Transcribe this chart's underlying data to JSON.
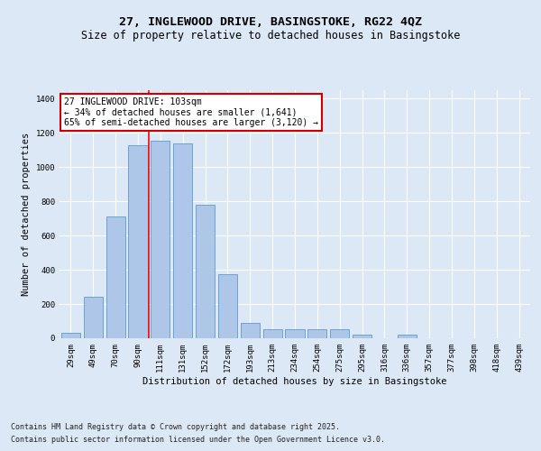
{
  "title_line1": "27, INGLEWOOD DRIVE, BASINGSTOKE, RG22 4QZ",
  "title_line2": "Size of property relative to detached houses in Basingstoke",
  "xlabel": "Distribution of detached houses by size in Basingstoke",
  "ylabel": "Number of detached properties",
  "categories": [
    "29sqm",
    "49sqm",
    "70sqm",
    "90sqm",
    "111sqm",
    "131sqm",
    "152sqm",
    "172sqm",
    "193sqm",
    "213sqm",
    "234sqm",
    "254sqm",
    "275sqm",
    "295sqm",
    "316sqm",
    "336sqm",
    "357sqm",
    "377sqm",
    "398sqm",
    "418sqm",
    "439sqm"
  ],
  "values": [
    30,
    245,
    710,
    1130,
    1155,
    1140,
    780,
    375,
    90,
    55,
    55,
    55,
    55,
    20,
    0,
    20,
    0,
    0,
    0,
    0,
    0
  ],
  "bar_color": "#aec6e8",
  "bar_edge_color": "#5b9bd5",
  "bar_width": 0.85,
  "annotation_text": "27 INGLEWOOD DRIVE: 103sqm\n← 34% of detached houses are smaller (1,641)\n65% of semi-detached houses are larger (3,120) →",
  "annotation_box_color": "#ffffff",
  "annotation_box_edge_color": "#cc0000",
  "ylim": [
    0,
    1450
  ],
  "yticks": [
    0,
    200,
    400,
    600,
    800,
    1000,
    1200,
    1400
  ],
  "bg_color": "#dce8f5",
  "plot_bg_color": "#dce8f5",
  "footer_line1": "Contains HM Land Registry data © Crown copyright and database right 2025.",
  "footer_line2": "Contains public sector information licensed under the Open Government Licence v3.0.",
  "title_fontsize": 9.5,
  "subtitle_fontsize": 8.5,
  "label_fontsize": 7.5,
  "tick_fontsize": 6.5,
  "annotation_fontsize": 7,
  "footer_fontsize": 6
}
